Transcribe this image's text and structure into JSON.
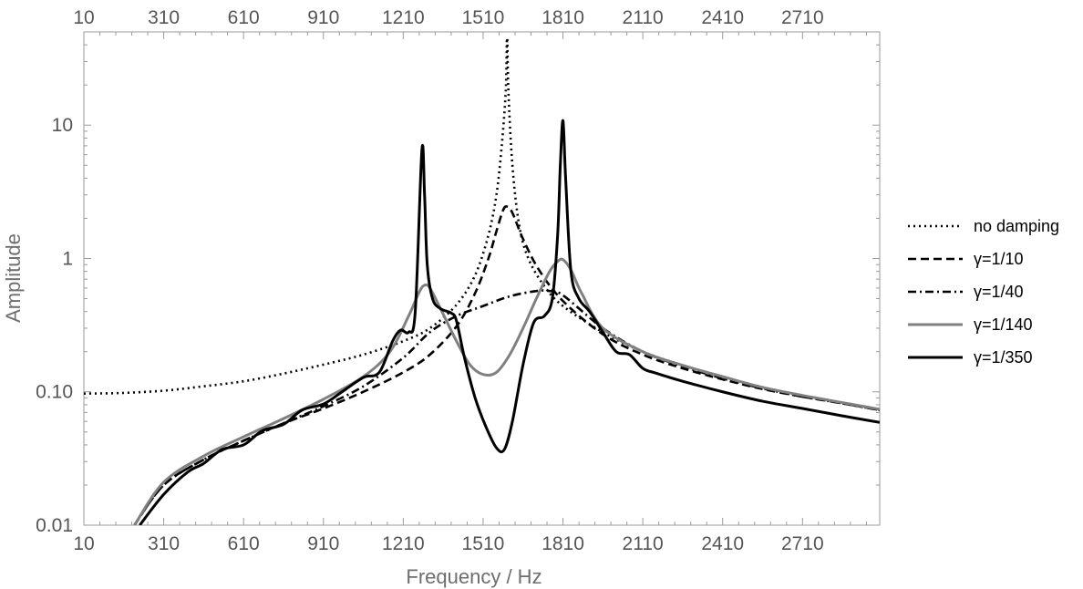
{
  "chart_data": {
    "type": "line",
    "xlabel": "Frequency / Hz",
    "ylabel": "Amplitude",
    "xlim": [
      10,
      3000
    ],
    "ylim": [
      0.01,
      50
    ],
    "yscale": "log",
    "grid": false,
    "legend_position": "right",
    "x_ticks": [
      "10",
      "310",
      "610",
      "910",
      "1210",
      "1510",
      "1810",
      "2110",
      "2410",
      "2710"
    ],
    "y_ticks": [
      "0.01",
      "0.10",
      "1",
      "10"
    ],
    "series": [
      {
        "name": "no damping",
        "color": "#000000",
        "style": "dotted",
        "x": [
          10,
          150,
          310,
          460,
          610,
          760,
          910,
          1060,
          1210,
          1310,
          1410,
          1480,
          1530,
          1560,
          1580,
          1595,
          1600,
          1605,
          1620,
          1645,
          1680,
          1740,
          1810,
          1960,
          2110,
          2260,
          2410,
          2560,
          2710,
          2860,
          3000
        ],
        "y": [
          0.097,
          0.098,
          0.102,
          0.11,
          0.12,
          0.137,
          0.16,
          0.19,
          0.24,
          0.3,
          0.45,
          0.75,
          1.5,
          3.0,
          7.0,
          18.0,
          45.0,
          18.0,
          5.0,
          1.8,
          1.0,
          0.62,
          0.44,
          0.28,
          0.2,
          0.158,
          0.13,
          0.108,
          0.094,
          0.082,
          0.073
        ]
      },
      {
        "name": "γ=1/10",
        "color": "#000000",
        "style": "dashed",
        "x": [
          200,
          310,
          460,
          610,
          760,
          910,
          1060,
          1210,
          1310,
          1410,
          1480,
          1530,
          1560,
          1585,
          1600,
          1620,
          1660,
          1720,
          1810,
          1960,
          2110,
          2260,
          2410,
          2560,
          2710,
          2860,
          3000
        ],
        "y": [
          0.01,
          0.02,
          0.031,
          0.043,
          0.058,
          0.075,
          0.1,
          0.14,
          0.19,
          0.31,
          0.55,
          1.0,
          1.6,
          2.3,
          2.45,
          2.2,
          1.4,
          0.82,
          0.48,
          0.27,
          0.19,
          0.15,
          0.124,
          0.105,
          0.092,
          0.082,
          0.073
        ]
      },
      {
        "name": "γ=1/40",
        "color": "#000000",
        "style": "dashdot",
        "x": [
          200,
          310,
          460,
          610,
          760,
          910,
          1060,
          1210,
          1310,
          1410,
          1510,
          1610,
          1710,
          1760,
          1810,
          1960,
          2110,
          2260,
          2410,
          2560,
          2710,
          2860,
          3000
        ],
        "y": [
          0.01,
          0.02,
          0.031,
          0.043,
          0.058,
          0.078,
          0.11,
          0.18,
          0.28,
          0.37,
          0.44,
          0.52,
          0.57,
          0.57,
          0.53,
          0.3,
          0.2,
          0.155,
          0.126,
          0.106,
          0.092,
          0.082,
          0.073
        ]
      },
      {
        "name": "γ=1/140",
        "color": "#808080",
        "style": "solid",
        "x": [
          200,
          310,
          460,
          610,
          760,
          910,
          1060,
          1160,
          1230,
          1270,
          1290,
          1310,
          1350,
          1410,
          1460,
          1510,
          1560,
          1610,
          1660,
          1710,
          1760,
          1790,
          1810,
          1840,
          1880,
          1960,
          2110,
          2260,
          2410,
          2560,
          2710,
          2860,
          3000
        ],
        "y": [
          0.01,
          0.021,
          0.033,
          0.046,
          0.063,
          0.088,
          0.13,
          0.2,
          0.37,
          0.56,
          0.63,
          0.6,
          0.42,
          0.24,
          0.16,
          0.135,
          0.14,
          0.19,
          0.3,
          0.5,
          0.8,
          0.95,
          0.98,
          0.82,
          0.55,
          0.3,
          0.2,
          0.158,
          0.13,
          0.108,
          0.094,
          0.083,
          0.074
        ]
      },
      {
        "name": "γ=1/350",
        "color": "#000000",
        "style": "solid",
        "x": [
          220,
          310,
          400,
          460,
          530,
          610,
          680,
          760,
          830,
          910,
          980,
          1060,
          1120,
          1170,
          1200,
          1230,
          1255,
          1280,
          1290,
          1300,
          1320,
          1350,
          1390,
          1410,
          1440,
          1480,
          1520,
          1560,
          1590,
          1620,
          1660,
          1700,
          1740,
          1770,
          1790,
          1800,
          1810,
          1820,
          1840,
          1870,
          1910,
          1960,
          2010,
          2060,
          2110,
          2160,
          2260,
          2410,
          2560,
          2710,
          2860,
          3000
        ],
        "y": [
          0.01,
          0.017,
          0.025,
          0.029,
          0.037,
          0.04,
          0.051,
          0.057,
          0.073,
          0.081,
          0.1,
          0.128,
          0.14,
          0.24,
          0.29,
          0.28,
          0.4,
          6.5,
          3.0,
          0.9,
          0.5,
          0.42,
          0.39,
          0.34,
          0.18,
          0.09,
          0.055,
          0.038,
          0.037,
          0.06,
          0.16,
          0.33,
          0.37,
          0.5,
          1.5,
          5.0,
          10.8,
          4.0,
          0.8,
          0.5,
          0.4,
          0.28,
          0.2,
          0.19,
          0.15,
          0.138,
          0.12,
          0.1,
          0.085,
          0.075,
          0.066,
          0.059
        ]
      }
    ]
  }
}
